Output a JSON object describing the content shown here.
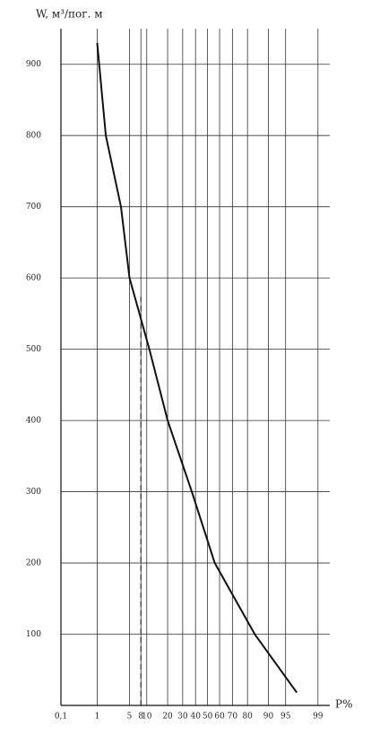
{
  "chart_data": {
    "type": "line",
    "y_label": "W, м³/пог. м",
    "x_label": "P%",
    "xscale": "probability",
    "x": [
      1,
      1.6,
      3.4,
      5,
      11,
      20,
      37,
      56,
      84,
      97
    ],
    "values": [
      930,
      800,
      700,
      600,
      500,
      400,
      300,
      200,
      100,
      18
    ],
    "color": "#111",
    "xlim": [
      0.1,
      99.5
    ],
    "xticks": [
      {
        "value": 0.1,
        "label": "0,1"
      },
      1,
      5,
      8,
      10,
      20,
      30,
      40,
      50,
      60,
      70,
      80,
      90,
      95,
      99
    ],
    "ylim": [
      0,
      950
    ],
    "yticks": [
      100,
      200,
      300,
      400,
      500,
      600,
      700,
      800,
      900
    ],
    "grid": true,
    "reference_line": {
      "x": 8,
      "y": 575,
      "style": "dashed"
    }
  }
}
